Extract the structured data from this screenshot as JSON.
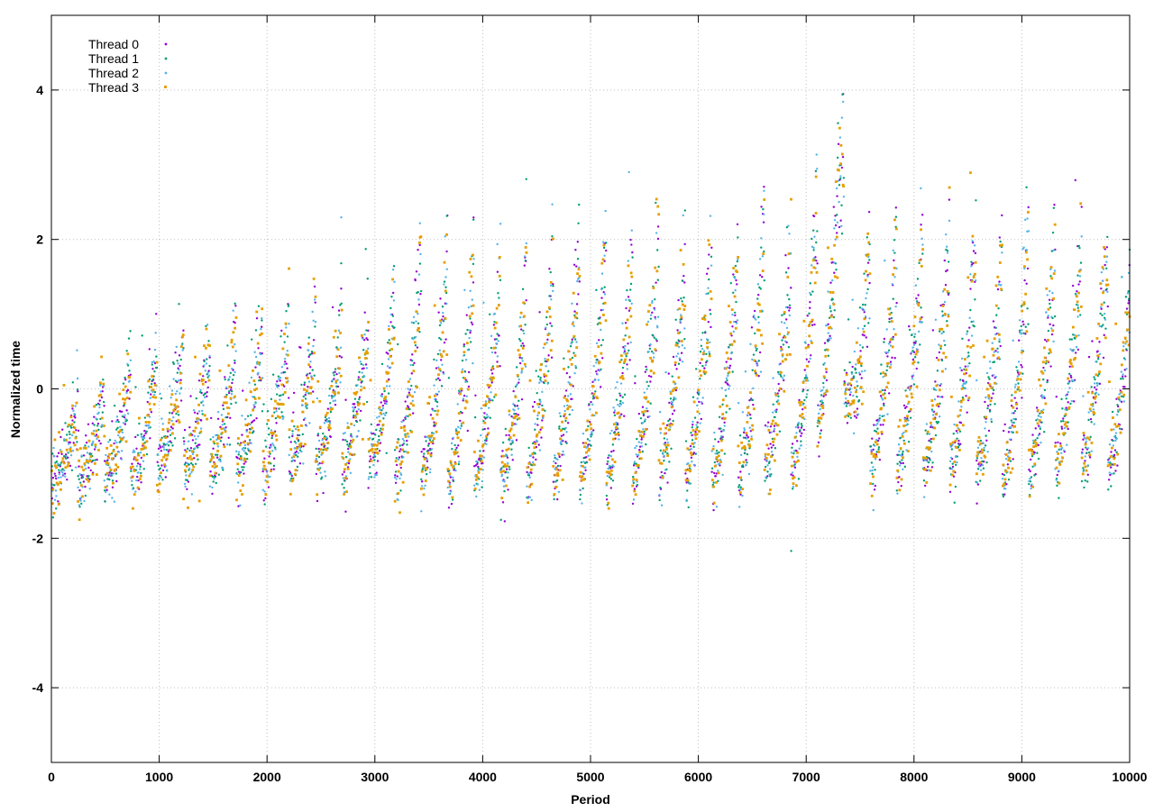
{
  "chart_data": {
    "type": "scatter",
    "title": "",
    "xlabel": "Period",
    "ylabel": "Normalized time",
    "xlim": [
      0,
      10000
    ],
    "ylim": [
      -5,
      5
    ],
    "x_ticks": [
      0,
      1000,
      2000,
      3000,
      4000,
      5000,
      6000,
      7000,
      8000,
      9000,
      10000
    ],
    "y_ticks": [
      -4,
      -2,
      0,
      2,
      4
    ],
    "grid": true,
    "legend_position": "top-left",
    "cycle_period": 245,
    "series": [
      {
        "name": "Thread 0",
        "color": "#9400d3",
        "marker": "dot"
      },
      {
        "name": "Thread 1",
        "color": "#009e73",
        "marker": "dot"
      },
      {
        "name": "Thread 2",
        "color": "#56b4e9",
        "marker": "dot"
      },
      {
        "name": "Thread 3",
        "color": "#e69f00",
        "marker": "square"
      }
    ],
    "envelope": {
      "description_points_x": [
        0,
        1000,
        2000,
        3000,
        3400,
        4000,
        5000,
        6000,
        7000,
        7300,
        7500,
        8000,
        9000,
        10000
      ],
      "baseline_y": [
        -1.3,
        -1.1,
        -1.1,
        -1.0,
        -1.2,
        -1.2,
        -1.2,
        -1.2,
        -1.1,
        0.3,
        -1.0,
        -1.1,
        -1.1,
        -1.0
      ],
      "peak_y": [
        -0.3,
        0.9,
        1.3,
        1.4,
        2.5,
        2.1,
        2.6,
        2.6,
        2.7,
        4.6,
        2.6,
        2.8,
        2.6,
        2.8
      ]
    }
  }
}
